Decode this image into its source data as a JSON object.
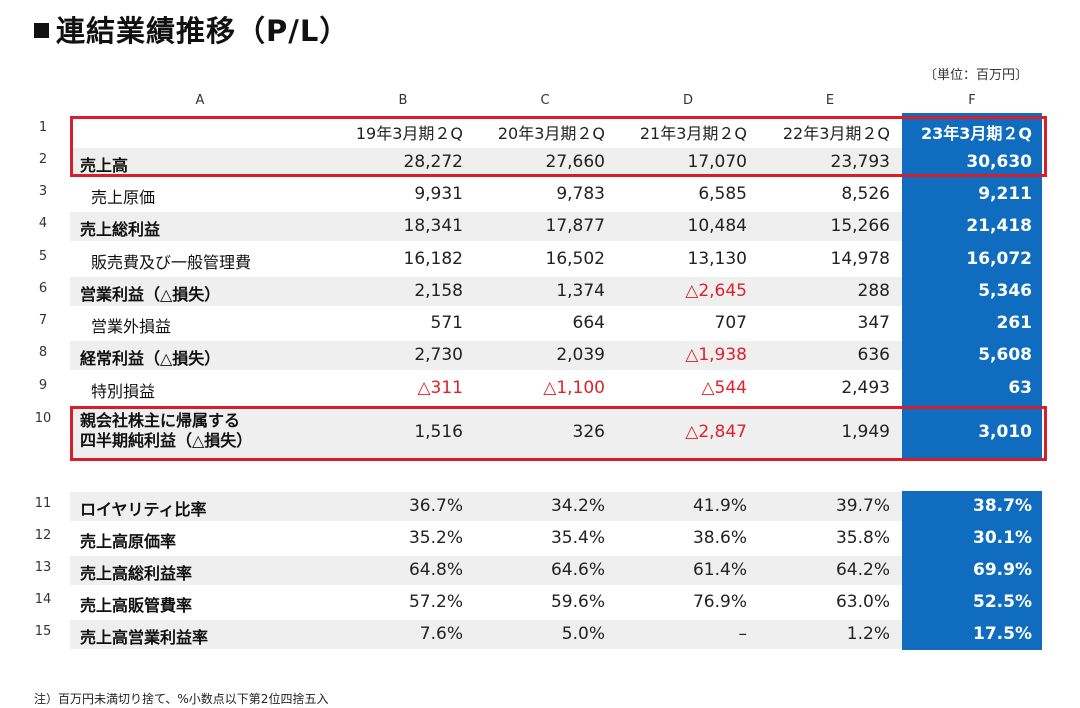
{
  "title": "連結業績推移（P/L）",
  "unit_label": "〔単位：百万円〕",
  "column_letters": [
    "A",
    "B",
    "C",
    "D",
    "E",
    "F"
  ],
  "periods": [
    "19年3月期２Q",
    "20年3月期２Q",
    "21年3月期２Q",
    "22年3月期２Q",
    "23年3月期２Q"
  ],
  "header_row_number": "1",
  "rows": [
    {
      "num": "2",
      "label": "売上高",
      "bold": true,
      "values": [
        "28,272",
        "27,660",
        "17,070",
        "23,793",
        "30,630"
      ],
      "negative": [
        false,
        false,
        false,
        false,
        false
      ]
    },
    {
      "num": "3",
      "label": "売上原価",
      "bold": false,
      "values": [
        "9,931",
        "9,783",
        "6,585",
        "8,526",
        "9,211"
      ],
      "negative": [
        false,
        false,
        false,
        false,
        false
      ]
    },
    {
      "num": "4",
      "label": "売上総利益",
      "bold": true,
      "values": [
        "18,341",
        "17,877",
        "10,484",
        "15,266",
        "21,418"
      ],
      "negative": [
        false,
        false,
        false,
        false,
        false
      ]
    },
    {
      "num": "5",
      "label": "販売費及び一般管理費",
      "bold": false,
      "values": [
        "16,182",
        "16,502",
        "13,130",
        "14,978",
        "16,072"
      ],
      "negative": [
        false,
        false,
        false,
        false,
        false
      ]
    },
    {
      "num": "6",
      "label": "営業利益（△損失）",
      "bold": true,
      "values": [
        "2,158",
        "1,374",
        "△2,645",
        "288",
        "5,346"
      ],
      "negative": [
        false,
        false,
        true,
        false,
        false
      ]
    },
    {
      "num": "7",
      "label": "営業外損益",
      "bold": false,
      "values": [
        "571",
        "664",
        "707",
        "347",
        "261"
      ],
      "negative": [
        false,
        false,
        false,
        false,
        false
      ]
    },
    {
      "num": "8",
      "label": "経常利益（△損失）",
      "bold": true,
      "values": [
        "2,730",
        "2,039",
        "△1,938",
        "636",
        "5,608"
      ],
      "negative": [
        false,
        false,
        true,
        false,
        false
      ]
    },
    {
      "num": "9",
      "label": "特別損益",
      "bold": false,
      "values": [
        "△311",
        "△1,100",
        "△544",
        "2,493",
        "63"
      ],
      "negative": [
        true,
        true,
        true,
        false,
        false
      ]
    },
    {
      "num": "10",
      "label_line1": "親会社株主に帰属する",
      "label_line2": "四半期純利益（△損失）",
      "bold": true,
      "values": [
        "1,516",
        "326",
        "△2,847",
        "1,949",
        "3,010"
      ],
      "negative": [
        false,
        false,
        true,
        false,
        false
      ]
    }
  ],
  "ratio_rows": [
    {
      "num": "11",
      "label": "ロイヤリティ比率",
      "values": [
        "36.7%",
        "34.2%",
        "41.9%",
        "39.7%",
        "38.7%"
      ]
    },
    {
      "num": "12",
      "label": "売上高原価率",
      "values": [
        "35.2%",
        "35.4%",
        "38.6%",
        "35.8%",
        "30.1%"
      ]
    },
    {
      "num": "13",
      "label": "売上高総利益率",
      "values": [
        "64.8%",
        "64.6%",
        "61.4%",
        "64.2%",
        "69.9%"
      ]
    },
    {
      "num": "14",
      "label": "売上高販管費率",
      "values": [
        "57.2%",
        "59.6%",
        "76.9%",
        "63.0%",
        "52.5%"
      ]
    },
    {
      "num": "15",
      "label": "売上高営業利益率",
      "values": [
        "7.6%",
        "5.0%",
        "–",
        "1.2%",
        "17.5%"
      ]
    }
  ],
  "note": "注）百万円未満切り捨て、%小数点以下第2位四捨五入",
  "colors": {
    "highlight_column": "#0f6cbf",
    "negative": "#e0202a",
    "box": "#d81e2a",
    "band": "#efefef"
  }
}
